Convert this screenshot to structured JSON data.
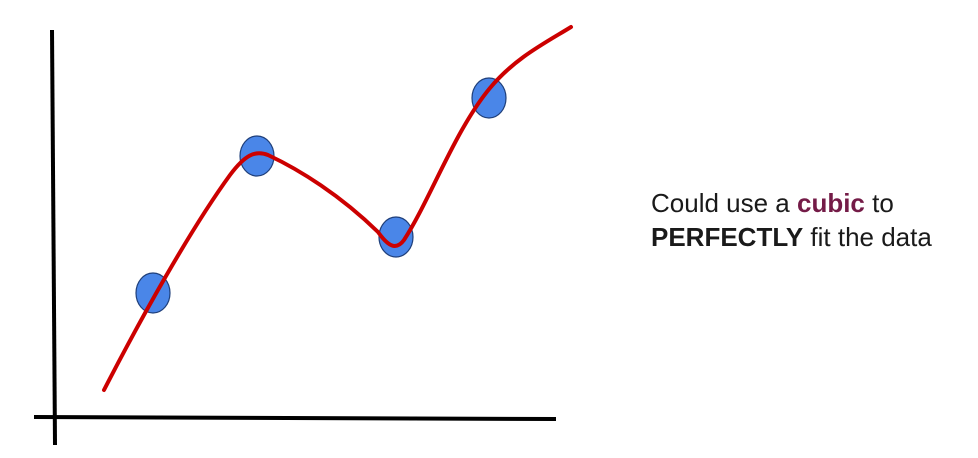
{
  "caption": {
    "line1_before": "Could use a ",
    "line1_emph": "cubic",
    "line1_after": " to",
    "line2_emph": "PERFECTLY",
    "line2_after": " fit the data"
  },
  "colors": {
    "curve": "#cc0000",
    "point_fill": "#4a86e8",
    "point_stroke": "#1f3f7a",
    "axis": "#000000",
    "emphasis": "#741b47",
    "text": "#1a1a1a"
  },
  "points_count": 4
}
